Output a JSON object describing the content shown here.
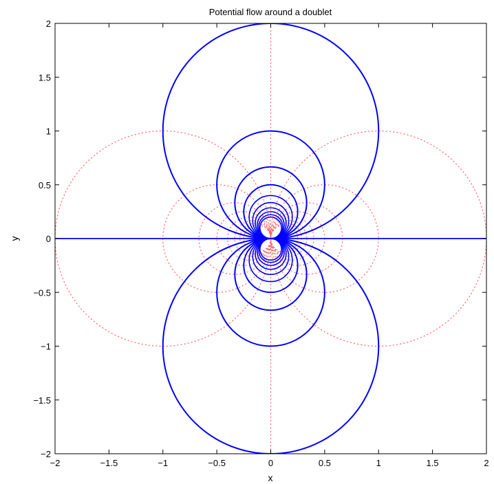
{
  "chart_data": {
    "type": "line",
    "title": "Potential flow around a doublet",
    "xlabel": "x",
    "ylabel": "y",
    "xlim": [
      -2,
      2
    ],
    "ylim": [
      -2,
      2
    ],
    "xticks": [
      -2,
      -1.5,
      -1,
      -0.5,
      0,
      0.5,
      1,
      1.5,
      2
    ],
    "yticks": [
      -2,
      -1.5,
      -1,
      -0.5,
      0,
      0.5,
      1,
      1.5,
      2
    ],
    "xtick_labels": [
      "−2",
      "−1.5",
      "−1",
      "−0.5",
      "0",
      "0.5",
      "1",
      "1.5",
      "2"
    ],
    "ytick_labels": [
      "−2",
      "−1.5",
      "−1",
      "−0.5",
      "0",
      "0.5",
      "1",
      "1.5",
      "2"
    ],
    "grid": false,
    "legend": "none",
    "streamlines": {
      "style": "solid",
      "color": "#0000ff",
      "axis_line_y": 0,
      "circles": [
        {
          "cx": 0,
          "cy": 1,
          "r": 1
        },
        {
          "cx": 0,
          "cy": 0.5,
          "r": 0.5
        },
        {
          "cx": 0,
          "cy": 0.333,
          "r": 0.333
        },
        {
          "cx": 0,
          "cy": 0.25,
          "r": 0.25
        },
        {
          "cx": 0,
          "cy": -1,
          "r": 1
        },
        {
          "cx": 0,
          "cy": -0.5,
          "r": 0.5
        },
        {
          "cx": 0,
          "cy": -0.333,
          "r": 0.333
        },
        {
          "cx": 0,
          "cy": -0.25,
          "r": 0.25
        }
      ],
      "extra_small_radii": [
        0.2,
        0.167,
        0.143,
        0.125,
        0.111,
        0.1
      ]
    },
    "potential_lines": {
      "style": "dotted",
      "color": "#ff6666",
      "axis_line_x": 0,
      "circles": [
        {
          "cx": 1,
          "cy": 0,
          "r": 1
        },
        {
          "cx": 0.5,
          "cy": 0,
          "r": 0.5
        },
        {
          "cx": 0.333,
          "cy": 0,
          "r": 0.333
        },
        {
          "cx": 0.25,
          "cy": 0,
          "r": 0.25
        },
        {
          "cx": 0.2,
          "cy": 0,
          "r": 0.2
        },
        {
          "cx": 0.167,
          "cy": 0,
          "r": 0.167
        },
        {
          "cx": 0.143,
          "cy": 0,
          "r": 0.143
        },
        {
          "cx": 0.125,
          "cy": 0,
          "r": 0.125
        },
        {
          "cx": -1,
          "cy": 0,
          "r": 1
        },
        {
          "cx": -0.5,
          "cy": 0,
          "r": 0.5
        },
        {
          "cx": -0.333,
          "cy": 0,
          "r": 0.333
        },
        {
          "cx": -0.25,
          "cy": 0,
          "r": 0.25
        },
        {
          "cx": -0.2,
          "cy": 0,
          "r": 0.2
        },
        {
          "cx": -0.167,
          "cy": 0,
          "r": 0.167
        },
        {
          "cx": -0.143,
          "cy": 0,
          "r": 0.143
        },
        {
          "cx": -0.125,
          "cy": 0,
          "r": 0.125
        }
      ]
    }
  }
}
